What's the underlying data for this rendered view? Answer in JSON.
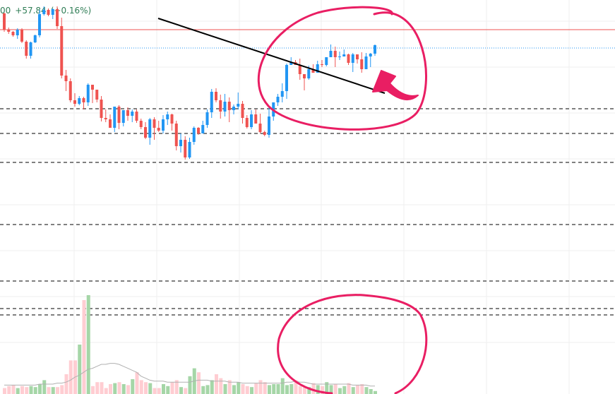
{
  "header": {
    "last_fragment": "00",
    "change": "+57.84",
    "change_pct": "(+0.16%)"
  },
  "colors": {
    "up": "#2196f3",
    "down": "#ef5350",
    "volume_up": "#a5d6a7",
    "volume_down": "#ffcdd2",
    "volume_ma": "#b0b0b0",
    "horizontal_line": "#ef5350",
    "current_price_line": "#2196f3",
    "dashed_levels": "#000000",
    "trendline": "#000000",
    "annotation": "#e91e63",
    "grid": "#efefef",
    "header_text": "#2f7d55"
  },
  "chart_data": {
    "type": "candlestick",
    "title": "",
    "y_axis_visible": false,
    "x_axis_visible": false,
    "grid": true,
    "candles": [
      [
        236,
        213,
        237,
        210
      ],
      [
        213,
        210,
        216,
        207
      ],
      [
        210,
        205,
        211,
        203
      ],
      [
        205,
        213,
        215,
        200
      ],
      [
        213,
        196,
        215,
        194
      ],
      [
        196,
        176,
        198,
        172
      ],
      [
        176,
        195,
        196,
        172
      ],
      [
        195,
        205,
        206,
        194
      ],
      [
        205,
        235,
        241,
        202
      ],
      [
        235,
        241,
        246,
        233
      ],
      [
        241,
        234,
        243,
        232
      ],
      [
        234,
        242,
        243,
        228
      ],
      [
        242,
        218,
        246,
        214
      ],
      [
        218,
        148,
        230,
        144
      ],
      [
        148,
        140,
        156,
        126
      ],
      [
        140,
        113,
        144,
        110
      ],
      [
        113,
        108,
        123,
        104
      ],
      [
        108,
        116,
        119,
        106
      ],
      [
        116,
        110,
        118,
        100
      ],
      [
        110,
        135,
        137,
        105
      ],
      [
        135,
        128,
        130,
        109
      ],
      [
        128,
        114,
        123,
        110
      ],
      [
        114,
        88,
        119,
        83
      ],
      [
        88,
        86,
        100,
        82
      ],
      [
        86,
        74,
        93,
        75
      ],
      [
        74,
        104,
        100,
        68
      ],
      [
        104,
        81,
        106,
        72
      ],
      [
        81,
        99,
        85,
        76
      ],
      [
        99,
        91,
        103,
        84
      ],
      [
        91,
        97,
        100,
        82
      ],
      [
        97,
        84,
        100,
        81
      ],
      [
        84,
        75,
        87,
        72
      ],
      [
        75,
        60,
        82,
        58
      ],
      [
        60,
        86,
        88,
        50
      ],
      [
        86,
        74,
        89,
        57
      ],
      [
        74,
        70,
        84,
        68
      ],
      [
        70,
        86,
        92,
        66
      ],
      [
        86,
        93,
        97,
        78
      ],
      [
        93,
        80,
        94,
        70
      ],
      [
        80,
        48,
        84,
        42
      ],
      [
        48,
        57,
        66,
        39
      ],
      [
        57,
        32,
        62,
        29
      ],
      [
        32,
        54,
        60,
        30
      ],
      [
        54,
        74,
        76,
        50
      ],
      [
        74,
        66,
        75,
        64
      ],
      [
        66,
        78,
        84,
        66
      ],
      [
        78,
        96,
        100,
        74
      ],
      [
        96,
        125,
        129,
        88
      ],
      [
        125,
        113,
        130,
        110
      ],
      [
        113,
        97,
        121,
        87
      ],
      [
        97,
        111,
        122,
        90
      ],
      [
        111,
        99,
        117,
        82
      ],
      [
        99,
        104,
        107,
        93
      ],
      [
        104,
        108,
        124,
        100
      ],
      [
        108,
        88,
        112,
        80
      ],
      [
        88,
        75,
        92,
        73
      ],
      [
        75,
        93,
        99,
        72
      ],
      [
        93,
        80,
        100,
        80
      ],
      [
        80,
        68,
        94,
        66
      ],
      [
        68,
        64,
        70,
        62
      ],
      [
        64,
        90,
        103,
        60
      ],
      [
        90,
        110,
        110,
        84
      ],
      [
        110,
        118,
        122,
        105
      ],
      [
        118,
        126,
        137,
        110
      ],
      [
        126,
        163,
        165,
        115
      ],
      [
        163,
        167,
        174,
        166
      ],
      [
        167,
        163,
        170,
        165
      ],
      [
        163,
        150,
        172,
        142
      ],
      [
        150,
        144,
        146,
        127
      ],
      [
        144,
        157,
        162,
        142
      ],
      [
        157,
        152,
        164,
        154
      ],
      [
        152,
        164,
        169,
        157
      ],
      [
        164,
        163,
        170,
        160
      ],
      [
        163,
        174,
        174,
        161
      ],
      [
        174,
        183,
        192,
        182
      ],
      [
        183,
        174,
        189,
        160
      ],
      [
        174,
        175,
        182,
        170
      ],
      [
        175,
        178,
        185,
        176
      ],
      [
        178,
        166,
        179,
        163
      ],
      [
        166,
        178,
        180,
        153
      ],
      [
        178,
        171,
        176,
        165
      ],
      [
        171,
        157,
        181,
        152
      ],
      [
        157,
        175,
        180,
        157
      ],
      [
        175,
        179,
        180,
        160
      ],
      [
        179,
        191,
        192,
        176
      ]
    ],
    "volume": [
      6,
      8,
      9,
      6,
      8,
      7,
      8,
      7,
      10,
      14,
      7,
      7,
      7,
      9,
      20,
      34,
      34,
      50,
      95,
      100,
      8,
      12,
      12,
      6,
      10,
      11,
      12,
      10,
      9,
      15,
      22,
      14,
      12,
      11,
      6,
      6,
      10,
      8,
      12,
      14,
      7,
      6,
      18,
      26,
      22,
      8,
      9,
      14,
      20,
      16,
      10,
      14,
      9,
      12,
      10,
      8,
      7,
      11,
      14,
      12,
      9,
      10,
      10,
      16,
      9,
      10,
      14,
      8,
      7,
      7,
      11,
      9,
      8,
      12,
      9,
      10,
      6,
      8,
      11,
      7,
      9,
      10,
      7,
      5,
      3
    ],
    "volume_ma": [
      9,
      9,
      9,
      9,
      9,
      9,
      9,
      9,
      10,
      10,
      10,
      10,
      11,
      11,
      12,
      14,
      17,
      19,
      22,
      25,
      26,
      28,
      30,
      30,
      31,
      31,
      30,
      28,
      26,
      24,
      22,
      18,
      16,
      14,
      13,
      13,
      13,
      12,
      12,
      12,
      12,
      12,
      12,
      13,
      14,
      14,
      14,
      13,
      13,
      13,
      13,
      12,
      12,
      12,
      11,
      11,
      11,
      11,
      11,
      11,
      11,
      11,
      11,
      11,
      12,
      12,
      13,
      12,
      12,
      11,
      10,
      10,
      10,
      10,
      10,
      10,
      10,
      10,
      10,
      9,
      9,
      9,
      9,
      8,
      8
    ]
  }
}
